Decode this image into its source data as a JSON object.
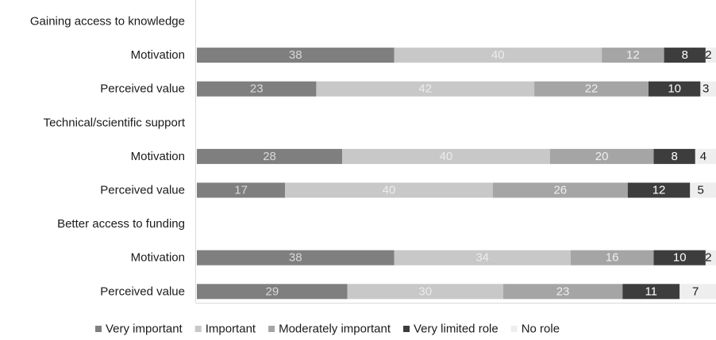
{
  "chart_data": {
    "type": "bar",
    "orientation": "horizontal",
    "stacked": true,
    "normalized": true,
    "rows": [
      {
        "label": "Gaining access to knowledge",
        "kind": "header"
      },
      {
        "label": "Motivation",
        "kind": "bar",
        "values": [
          38,
          40,
          12,
          8,
          2
        ]
      },
      {
        "label": "Perceived value",
        "kind": "bar",
        "values": [
          23,
          42,
          22,
          10,
          3
        ]
      },
      {
        "label": "Technical/scientific support",
        "kind": "header"
      },
      {
        "label": "Motivation",
        "kind": "bar",
        "values": [
          28,
          40,
          20,
          8,
          4
        ]
      },
      {
        "label": "Perceived value",
        "kind": "bar",
        "values": [
          17,
          40,
          26,
          12,
          5
        ]
      },
      {
        "label": "Better access to funding",
        "kind": "header"
      },
      {
        "label": "Motivation",
        "kind": "bar",
        "values": [
          38,
          34,
          16,
          10,
          2
        ]
      },
      {
        "label": "Perceived value",
        "kind": "bar",
        "values": [
          29,
          30,
          23,
          11,
          7
        ]
      }
    ],
    "series": [
      {
        "name": "Very important",
        "color": "#7f7f7f",
        "label_color": "#d9d9d9"
      },
      {
        "name": "Important",
        "color": "#c8c8c8",
        "label_color": "#ececec"
      },
      {
        "name": "Moderately important",
        "color": "#a5a5a5",
        "label_color": "#eeeeee"
      },
      {
        "name": "Very limited role",
        "color": "#3d3d3d",
        "label_color": "#ffffff"
      },
      {
        "name": "No role",
        "color": "#eeeeee",
        "label_color": "#1a1a1a"
      }
    ],
    "title": "",
    "xlabel": "",
    "ylabel": "",
    "grid": false,
    "legend_position": "bottom"
  }
}
